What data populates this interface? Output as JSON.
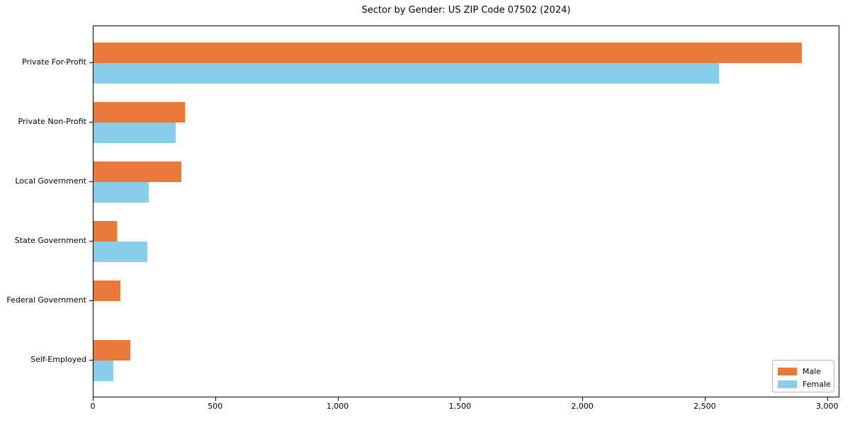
{
  "chart_data": {
    "type": "bar",
    "orientation": "horizontal",
    "title": "Sector by Gender: US ZIP Code 07502 (2024)",
    "categories": [
      "Private For-Profit",
      "Private Non-Profit",
      "Local Government",
      "State Government",
      "Federal Government",
      "Self-Employed"
    ],
    "series": [
      {
        "name": "Male",
        "color": "#E97A3C",
        "values": [
          2900,
          375,
          360,
          95,
          110,
          150
        ]
      },
      {
        "name": "Female",
        "color": "#87CEEB",
        "values": [
          2560,
          335,
          225,
          220,
          0,
          80
        ]
      }
    ],
    "xlabel": "",
    "ylabel": "",
    "xlim": [
      0,
      3050
    ],
    "x_ticks": [
      0,
      500,
      1000,
      1500,
      2000,
      2500,
      3000
    ],
    "x_tick_labels": [
      "0",
      "500",
      "1,000",
      "1,500",
      "2,000",
      "2,500",
      "3,000"
    ],
    "grid": false,
    "background": "#ffffff",
    "frame_color": "#000000",
    "legend": {
      "position": "lower right",
      "entries": [
        "Male",
        "Female"
      ]
    }
  }
}
